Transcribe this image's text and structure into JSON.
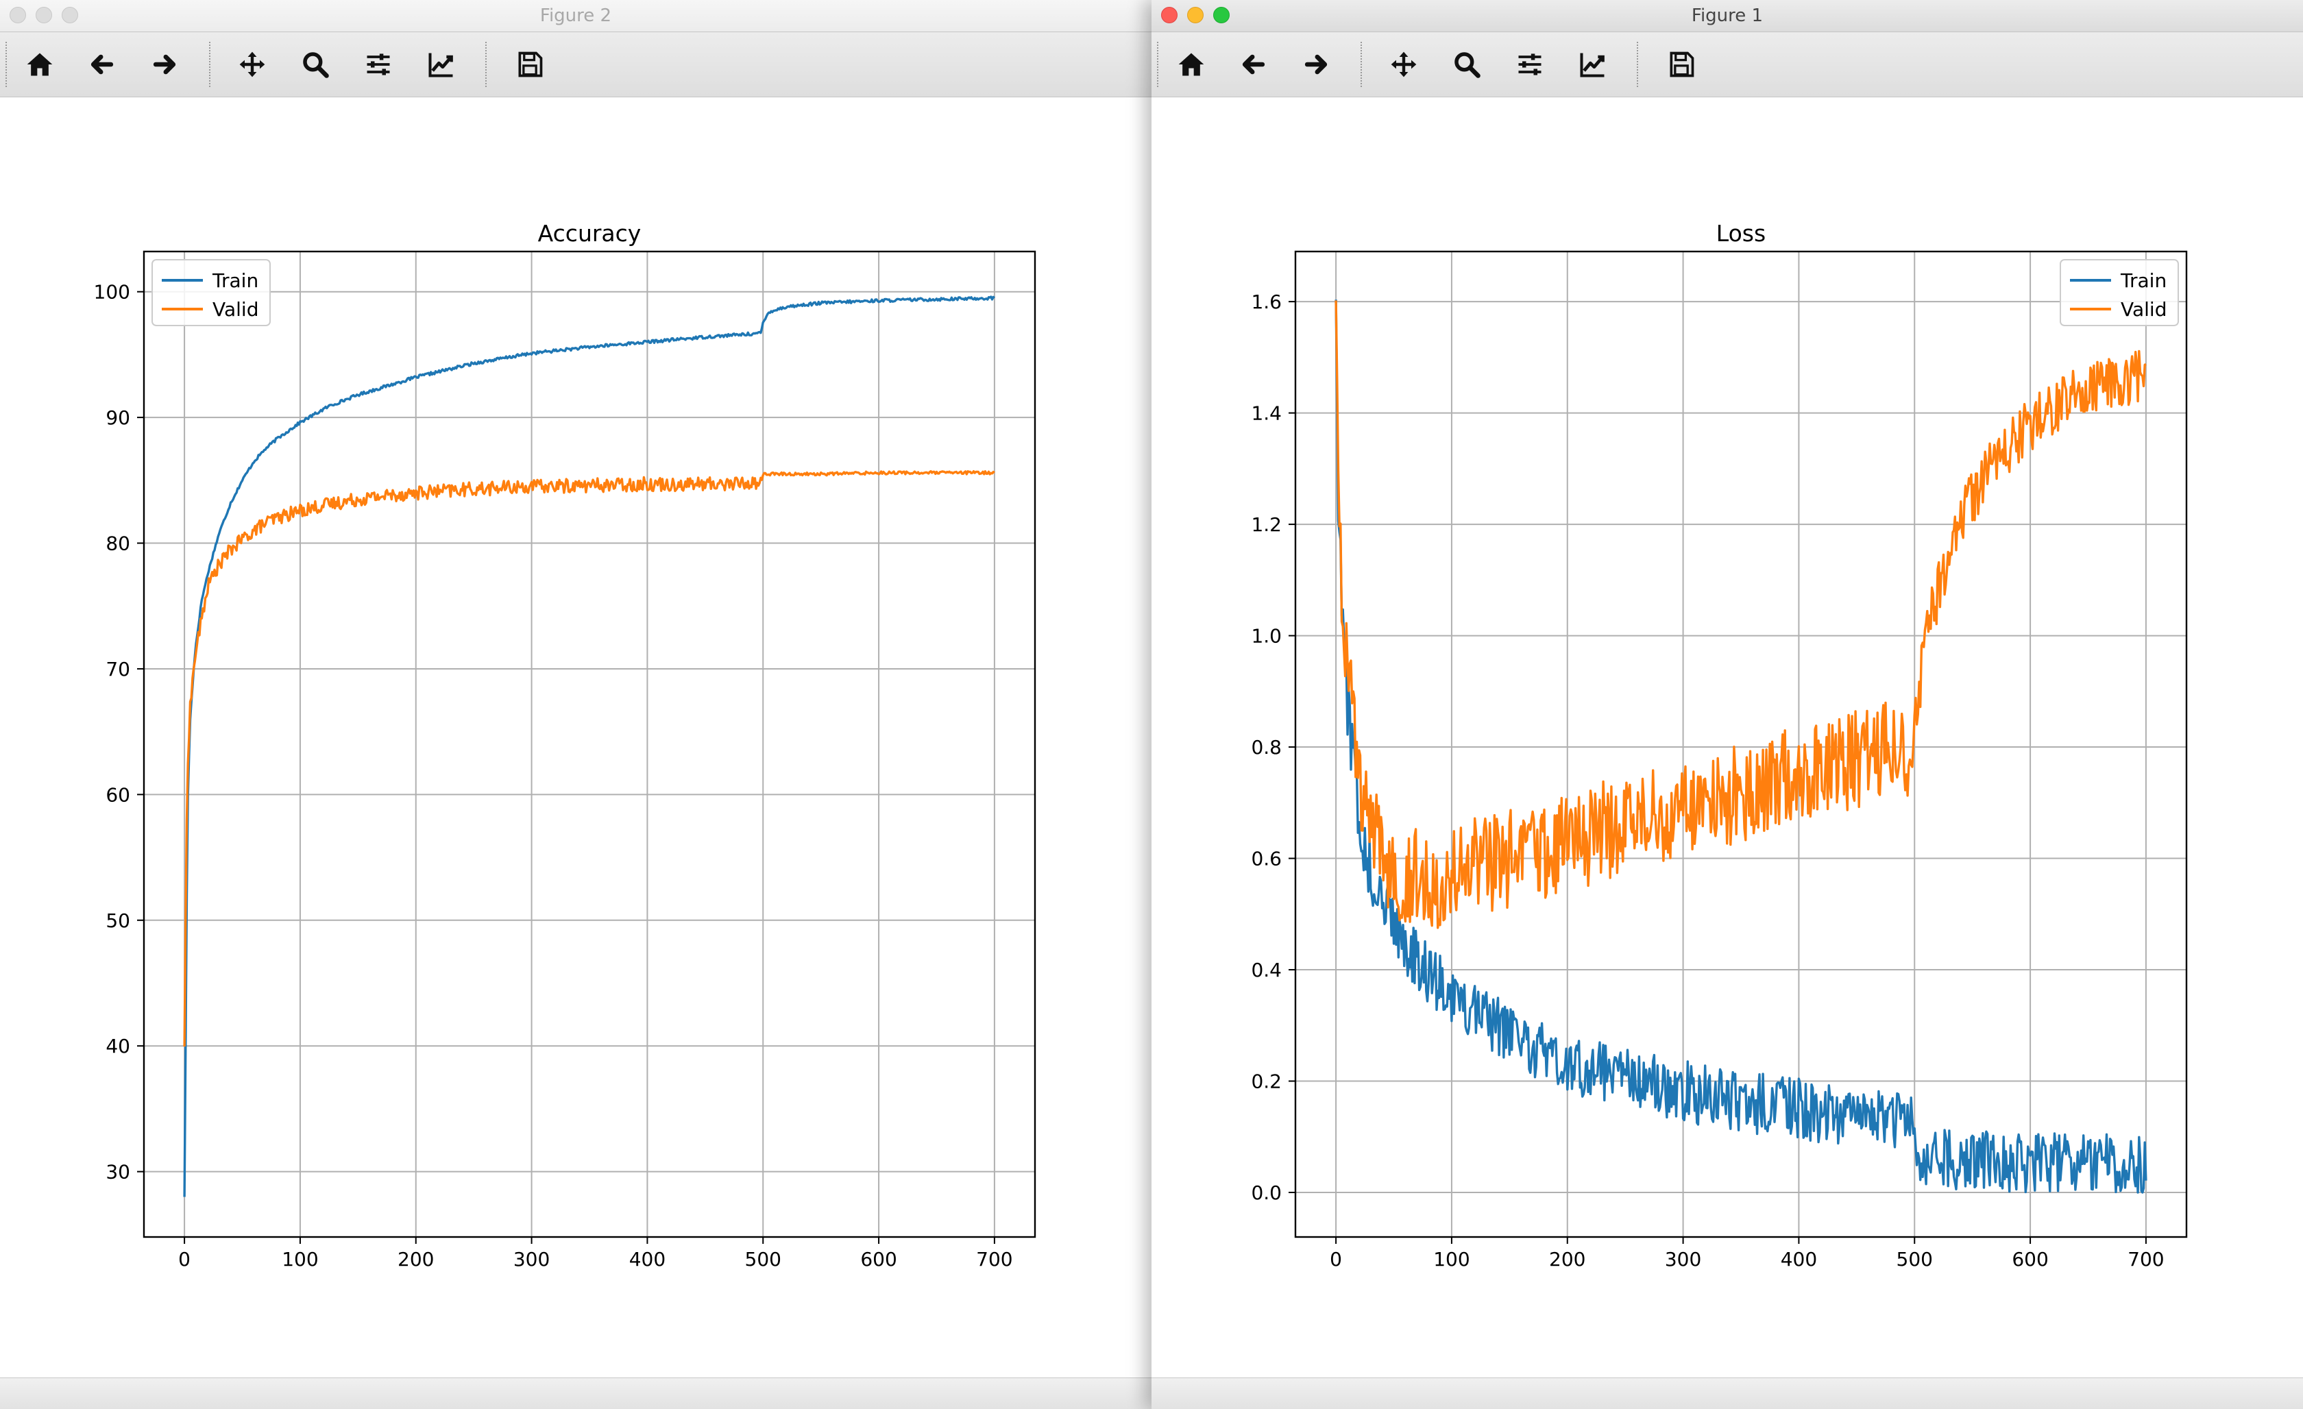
{
  "windows": {
    "left": {
      "title": "Figure 2",
      "active": false
    },
    "right": {
      "title": "Figure 1",
      "active": true
    }
  },
  "toolbar_icons": [
    "home-icon",
    "back-arrow-icon",
    "forward-arrow-icon",
    "pan-icon",
    "zoom-icon",
    "configure-subplots-icon",
    "edit-axis-icon",
    "save-icon"
  ],
  "colors": {
    "train": "#1f77b4",
    "valid": "#ff7f0e",
    "grid": "#b0b0b0"
  },
  "chart_data": [
    {
      "type": "line",
      "title": "Accuracy",
      "xlabel": "",
      "ylabel": "",
      "xlim": [
        -35,
        735
      ],
      "ylim": [
        24.8,
        103.2
      ],
      "xticks": [
        0,
        100,
        200,
        300,
        400,
        500,
        600,
        700
      ],
      "yticks": [
        30,
        40,
        50,
        60,
        70,
        80,
        90,
        100
      ],
      "grid": true,
      "legend": "top-left",
      "series": [
        {
          "name": "Train",
          "color": "#1f77b4",
          "x": [
            0,
            1,
            2,
            3,
            5,
            8,
            10,
            15,
            20,
            25,
            30,
            40,
            50,
            60,
            70,
            80,
            100,
            125,
            150,
            175,
            200,
            250,
            300,
            350,
            400,
            450,
            498,
            500,
            505,
            520,
            550,
            600,
            650,
            700
          ],
          "y": [
            28.0,
            40.0,
            52.0,
            60.0,
            66.0,
            70.0,
            72.0,
            75.5,
            77.5,
            79.2,
            80.8,
            83.2,
            85.0,
            86.5,
            87.5,
            88.3,
            89.6,
            90.9,
            91.8,
            92.5,
            93.2,
            94.3,
            95.1,
            95.6,
            96.0,
            96.4,
            96.7,
            97.5,
            98.4,
            98.8,
            99.1,
            99.3,
            99.4,
            99.5
          ],
          "noise": 0.12
        },
        {
          "name": "Valid",
          "color": "#ff7f0e",
          "x": [
            0,
            1,
            2,
            3,
            5,
            8,
            10,
            15,
            20,
            25,
            30,
            40,
            50,
            60,
            70,
            80,
            100,
            125,
            150,
            175,
            200,
            250,
            300,
            350,
            400,
            450,
            498,
            500,
            505,
            520,
            550,
            600,
            650,
            700
          ],
          "y": [
            40.0,
            50.0,
            58.0,
            63.0,
            67.0,
            70.0,
            71.5,
            74.0,
            76.5,
            77.5,
            78.3,
            79.5,
            80.3,
            81.0,
            81.6,
            82.0,
            82.6,
            83.1,
            83.5,
            83.8,
            84.0,
            84.3,
            84.5,
            84.6,
            84.7,
            84.7,
            84.8,
            85.5,
            85.5,
            85.5,
            85.5,
            85.6,
            85.6,
            85.6
          ],
          "noise": 0.55,
          "noise_after_500": 0.12
        }
      ]
    },
    {
      "type": "line",
      "title": "Loss",
      "xlabel": "",
      "ylabel": "",
      "xlim": [
        -35,
        735
      ],
      "ylim": [
        -0.08,
        1.69
      ],
      "xticks": [
        0,
        100,
        200,
        300,
        400,
        500,
        600,
        700
      ],
      "yticks": [
        0.0,
        0.2,
        0.4,
        0.6,
        0.8,
        1.0,
        1.2,
        1.4,
        1.6
      ],
      "ytick_labels": [
        "0.0",
        "0.2",
        "0.4",
        "0.6",
        "0.8",
        "1.0",
        "1.2",
        "1.4",
        "1.6"
      ],
      "grid": true,
      "legend": "top-right",
      "series": [
        {
          "name": "Train",
          "color": "#1f77b4",
          "x": [
            0,
            2,
            5,
            8,
            10,
            15,
            20,
            30,
            40,
            60,
            80,
            100,
            150,
            200,
            250,
            300,
            350,
            400,
            450,
            498,
            500,
            520,
            550,
            600,
            650,
            700
          ],
          "y": [
            1.6,
            1.2,
            1.05,
            0.9,
            0.85,
            0.75,
            0.65,
            0.55,
            0.5,
            0.42,
            0.37,
            0.33,
            0.26,
            0.21,
            0.18,
            0.16,
            0.14,
            0.13,
            0.11,
            0.1,
            0.05,
            0.04,
            0.035,
            0.03,
            0.03,
            0.025
          ],
          "noise": 0.05
        },
        {
          "name": "Valid",
          "color": "#ff7f0e",
          "x": [
            0,
            2,
            5,
            8,
            10,
            15,
            20,
            30,
            40,
            60,
            80,
            100,
            150,
            200,
            250,
            300,
            350,
            400,
            450,
            498,
            510,
            530,
            550,
            575,
            600,
            625,
            650,
            675,
            700
          ],
          "y": [
            1.61,
            1.3,
            1.1,
            1.0,
            0.95,
            0.85,
            0.72,
            0.66,
            0.6,
            0.57,
            0.56,
            0.57,
            0.6,
            0.63,
            0.66,
            0.69,
            0.72,
            0.75,
            0.78,
            0.8,
            1.0,
            1.15,
            1.25,
            1.33,
            1.38,
            1.42,
            1.44,
            1.46,
            1.47
          ],
          "noise": 0.09,
          "noise_after_500": 0.05
        }
      ]
    }
  ]
}
